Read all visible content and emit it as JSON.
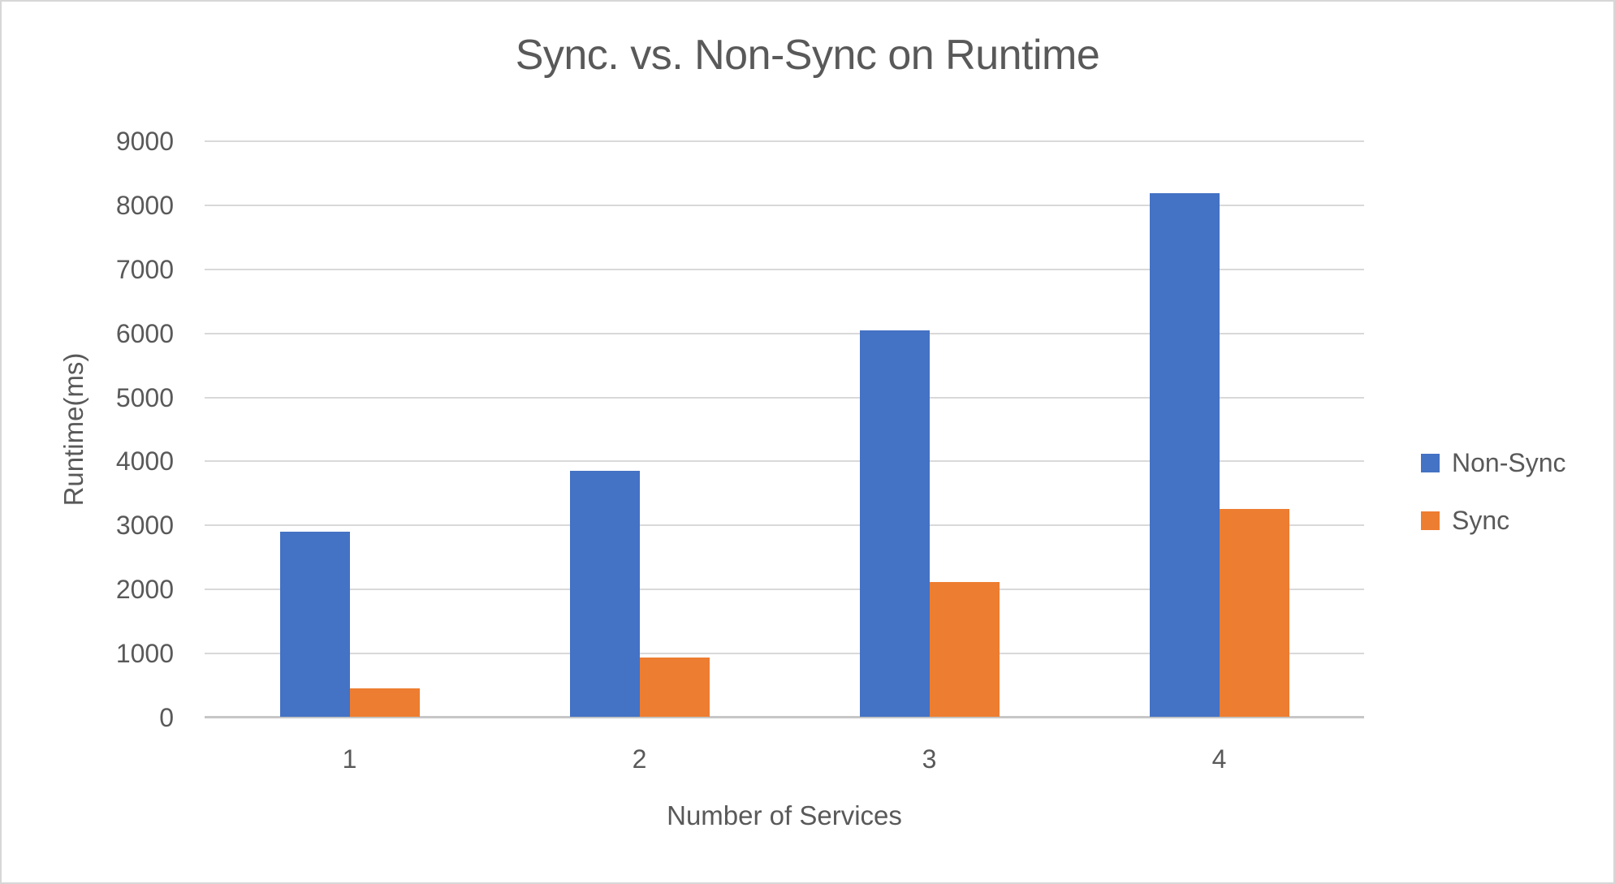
{
  "chart_data": {
    "type": "bar",
    "title": "Sync. vs. Non-Sync on Runtime",
    "xlabel": "Number of Services",
    "ylabel": "Runtime(ms)",
    "categories": [
      "1",
      "2",
      "3",
      "4"
    ],
    "series": [
      {
        "name": "Non-Sync",
        "color": "#4472C4",
        "values": [
          2890,
          3840,
          6040,
          8170
        ]
      },
      {
        "name": "Sync",
        "color": "#ED7D31",
        "values": [
          450,
          920,
          2110,
          3250
        ]
      }
    ],
    "ylim": [
      0,
      9000
    ],
    "ytick_step": 1000,
    "ytick_labels": [
      "0",
      "1000",
      "2000",
      "3000",
      "4000",
      "5000",
      "6000",
      "7000",
      "8000",
      "9000"
    ],
    "grid": true,
    "legend_position": "right",
    "theme": {
      "text_color": "#595959",
      "gridline_color": "#D9D9D9",
      "axis_line_color": "#C6C6C6",
      "background": "#FFFFFF",
      "border_color": "#D7D7D7"
    }
  }
}
